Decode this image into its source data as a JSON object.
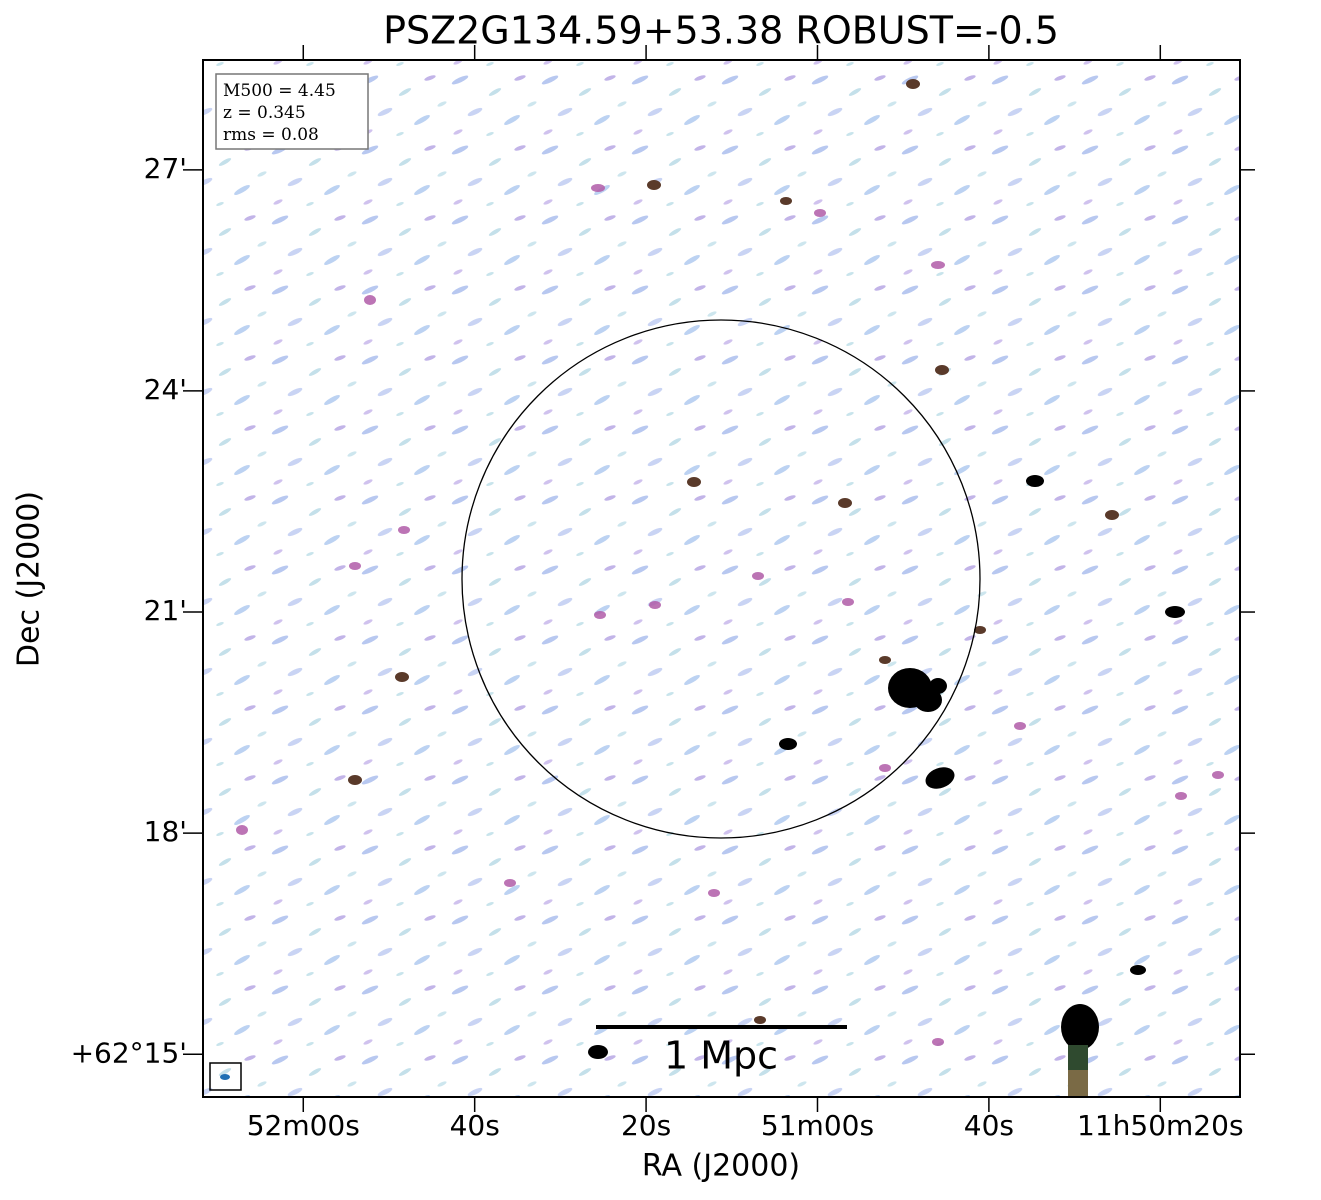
{
  "chart_data": {
    "type": "image",
    "title": "PSZ2G134.59+53.38 ROBUST=-0.5",
    "xlabel": "RA (J2000)",
    "ylabel": "Dec (J2000)",
    "xlim": [
      42731.7,
      42610.7
    ],
    "xticks": [
      {
        "value": 42720,
        "label": "52m00s"
      },
      {
        "value": 42700,
        "label": "40s"
      },
      {
        "value": 42680,
        "label": "20s"
      },
      {
        "value": 42660,
        "label": "51m00s"
      },
      {
        "value": 42640,
        "label": "40s"
      },
      {
        "value": 42620,
        "label": "11h50m20s"
      }
    ],
    "ylim": [
      14.42,
      28.49
    ],
    "yticks": [
      {
        "value": 15,
        "label": "+62°15'"
      },
      {
        "value": 18,
        "label": "18'"
      },
      {
        "value": 21,
        "label": "21'"
      },
      {
        "value": 24,
        "label": "24'"
      },
      {
        "value": 27,
        "label": "27'"
      }
    ],
    "annotations": [
      "M500 = 4.45",
      "z = 0.345",
      "rms = 0.08"
    ],
    "scale_bar_label": "1 Mpc"
  }
}
